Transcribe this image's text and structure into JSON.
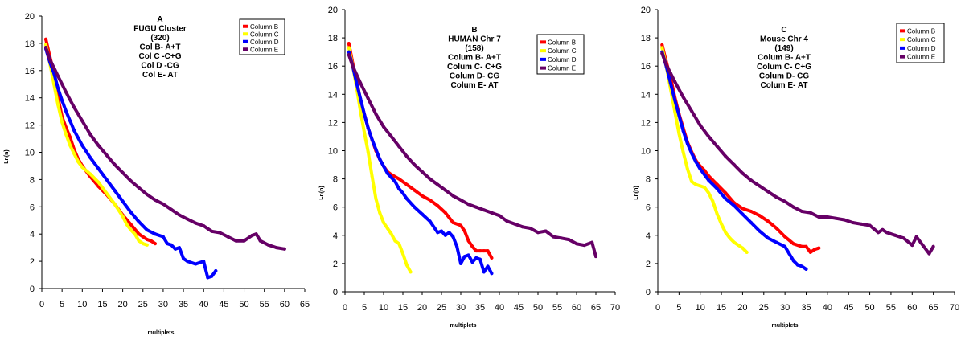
{
  "chart_data": [
    {
      "type": "line",
      "title_lines": [
        "A",
        "FUGU Cluster",
        "(320)",
        "Col B- A+T",
        "Col C -C+G",
        "Col D -CG",
        "Col E- AT"
      ],
      "xlabel": "multiplets",
      "ylabel": "Ln(n)",
      "xlim": [
        0,
        65
      ],
      "ylim": [
        0,
        20
      ],
      "xticks": [
        0,
        5,
        10,
        15,
        20,
        25,
        30,
        35,
        40,
        45,
        50,
        55,
        60,
        65
      ],
      "yticks": [
        0,
        2,
        4,
        6,
        8,
        10,
        12,
        14,
        16,
        18,
        20
      ],
      "legend_position": "top-right",
      "series": [
        {
          "name": "Column B",
          "color": "#ff0000",
          "x": [
            1,
            2,
            3,
            4,
            5,
            6,
            7,
            8,
            9,
            10,
            12,
            14,
            16,
            18,
            20,
            22,
            24,
            26,
            27,
            28
          ],
          "values": [
            18.3,
            17.0,
            15.8,
            14.0,
            12.6,
            11.8,
            11.1,
            10.2,
            9.5,
            9.0,
            8.2,
            7.5,
            6.9,
            6.2,
            5.4,
            4.7,
            4.0,
            3.6,
            3.5,
            3.3
          ]
        },
        {
          "name": "Column C",
          "color": "#ffff00",
          "x": [
            1,
            2,
            3,
            4,
            5,
            6,
            7,
            8,
            9,
            10,
            12,
            14,
            16,
            18,
            20,
            21,
            22,
            23,
            24,
            25,
            26
          ],
          "values": [
            17.9,
            16.5,
            15.0,
            13.5,
            12.2,
            11.3,
            10.5,
            9.9,
            9.3,
            8.9,
            8.4,
            7.8,
            7.0,
            6.2,
            5.3,
            4.7,
            4.3,
            4.0,
            3.5,
            3.3,
            3.2
          ]
        },
        {
          "name": "Column D",
          "color": "#0000ff",
          "x": [
            1,
            2,
            3,
            4,
            5,
            6,
            7,
            8,
            10,
            12,
            14,
            16,
            18,
            20,
            22,
            24,
            26,
            28,
            30,
            31,
            32,
            33,
            34,
            35,
            36,
            38,
            40,
            41,
            42,
            43
          ],
          "values": [
            17.6,
            16.6,
            15.8,
            14.7,
            13.8,
            13.0,
            12.3,
            11.6,
            10.5,
            9.6,
            8.8,
            8.0,
            7.2,
            6.4,
            5.6,
            4.9,
            4.3,
            4.0,
            3.8,
            3.3,
            3.2,
            2.9,
            3.0,
            2.2,
            2.0,
            1.8,
            2.0,
            0.8,
            0.9,
            1.3
          ]
        },
        {
          "name": "Column E",
          "color": "#660066",
          "x": [
            1,
            2,
            3,
            4,
            6,
            8,
            10,
            12,
            14,
            16,
            18,
            20,
            22,
            24,
            26,
            28,
            30,
            32,
            34,
            36,
            38,
            40,
            42,
            44,
            46,
            48,
            50,
            52,
            53,
            54,
            56,
            58,
            60
          ],
          "values": [
            17.7,
            16.8,
            16.2,
            15.6,
            14.4,
            13.3,
            12.3,
            11.3,
            10.5,
            9.8,
            9.1,
            8.5,
            7.9,
            7.4,
            6.9,
            6.5,
            6.2,
            5.8,
            5.4,
            5.1,
            4.8,
            4.6,
            4.2,
            4.1,
            3.8,
            3.5,
            3.5,
            3.9,
            4.0,
            3.5,
            3.2,
            3.0,
            2.9
          ]
        }
      ]
    },
    {
      "type": "line",
      "title_lines": [
        "B",
        "HUMAN Chr 7",
        "(158)",
        "Colum B- A+T",
        "Colum C- C+G",
        "Colum D- CG",
        "Colum E- AT"
      ],
      "xlabel": "multiplets",
      "ylabel": "Ln(n)",
      "xlim": [
        0,
        70
      ],
      "ylim": [
        0,
        20
      ],
      "xticks": [
        0,
        5,
        10,
        15,
        20,
        25,
        30,
        35,
        40,
        45,
        50,
        55,
        60,
        65,
        70
      ],
      "yticks": [
        0,
        2,
        4,
        6,
        8,
        10,
        12,
        14,
        16,
        18,
        20
      ],
      "legend_position": "top-right",
      "series": [
        {
          "name": "Column B",
          "color": "#ff0000",
          "x": [
            1,
            2,
            3,
            4,
            5,
            6,
            7,
            8,
            9,
            10,
            11,
            12,
            14,
            16,
            18,
            20,
            22,
            24,
            26,
            28,
            30,
            31,
            32,
            33,
            34,
            35,
            36,
            37,
            38
          ],
          "values": [
            17.6,
            16.2,
            15.0,
            13.6,
            12.6,
            11.6,
            10.8,
            10.0,
            9.4,
            8.9,
            8.5,
            8.3,
            8.0,
            7.6,
            7.2,
            6.8,
            6.5,
            6.1,
            5.6,
            4.9,
            4.7,
            4.3,
            3.6,
            3.2,
            2.9,
            2.9,
            2.9,
            2.9,
            2.4
          ]
        },
        {
          "name": "Column C",
          "color": "#ffff00",
          "x": [
            1,
            2,
            3,
            4,
            5,
            6,
            7,
            8,
            9,
            10,
            11,
            12,
            13,
            14,
            15,
            16,
            17
          ],
          "values": [
            17.3,
            16.0,
            14.5,
            12.8,
            11.3,
            9.9,
            8.2,
            6.6,
            5.6,
            4.9,
            4.5,
            4.1,
            3.6,
            3.4,
            2.7,
            1.9,
            1.4
          ]
        },
        {
          "name": "Column D",
          "color": "#0000ff",
          "x": [
            1,
            2,
            3,
            4,
            5,
            6,
            7,
            8,
            9,
            10,
            11,
            12,
            13,
            14,
            15,
            16,
            18,
            20,
            22,
            24,
            25,
            26,
            27,
            28,
            29,
            30,
            31,
            32,
            33,
            34,
            35,
            36,
            37,
            38
          ],
          "values": [
            17.0,
            16.0,
            14.8,
            13.7,
            12.6,
            11.6,
            10.8,
            10.1,
            9.4,
            8.9,
            8.4,
            8.1,
            7.8,
            7.3,
            7.0,
            6.6,
            6.0,
            5.5,
            5.0,
            4.2,
            4.3,
            4.0,
            4.2,
            3.9,
            3.2,
            2.0,
            2.5,
            2.6,
            2.1,
            2.4,
            2.3,
            1.4,
            1.8,
            1.3
          ]
        },
        {
          "name": "Column E",
          "color": "#660066",
          "x": [
            1,
            2,
            3,
            4,
            6,
            8,
            10,
            12,
            14,
            16,
            18,
            20,
            22,
            24,
            26,
            28,
            30,
            32,
            34,
            36,
            38,
            40,
            42,
            44,
            46,
            48,
            50,
            52,
            54,
            56,
            58,
            60,
            62,
            64,
            65
          ],
          "values": [
            16.8,
            16.0,
            15.4,
            14.8,
            13.7,
            12.6,
            11.7,
            11.0,
            10.3,
            9.6,
            9.0,
            8.5,
            8.0,
            7.6,
            7.2,
            6.8,
            6.5,
            6.2,
            6.0,
            5.8,
            5.6,
            5.4,
            5.0,
            4.8,
            4.6,
            4.5,
            4.2,
            4.3,
            3.9,
            3.8,
            3.7,
            3.4,
            3.3,
            3.5,
            2.5
          ]
        }
      ]
    },
    {
      "type": "line",
      "title_lines": [
        "C",
        "Mouse Chr 4",
        "(149)",
        "Colum B- A+T",
        "Colum C- C+G",
        "Colum D- CG",
        "Colum E- AT"
      ],
      "xlabel": "multiplets",
      "ylabel": "Ln(n)",
      "xlim": [
        0,
        70
      ],
      "ylim": [
        0,
        20
      ],
      "xticks": [
        0,
        5,
        10,
        15,
        20,
        25,
        30,
        35,
        40,
        45,
        50,
        55,
        60,
        65,
        70
      ],
      "yticks": [
        0,
        2,
        4,
        6,
        8,
        10,
        12,
        14,
        16,
        18,
        20
      ],
      "legend_position": "top-right",
      "series": [
        {
          "name": "Column B",
          "color": "#ff0000",
          "x": [
            1,
            2,
            3,
            4,
            5,
            6,
            7,
            8,
            9,
            10,
            11,
            12,
            14,
            16,
            18,
            20,
            22,
            24,
            26,
            28,
            30,
            32,
            34,
            35,
            36,
            37,
            38
          ],
          "values": [
            17.5,
            16.3,
            15.2,
            13.8,
            12.6,
            11.6,
            10.6,
            9.9,
            9.3,
            8.9,
            8.6,
            8.2,
            7.6,
            7.0,
            6.3,
            5.9,
            5.7,
            5.4,
            5.0,
            4.5,
            3.9,
            3.4,
            3.2,
            3.2,
            2.8,
            3.0,
            3.1
          ]
        },
        {
          "name": "Column C",
          "color": "#ffff00",
          "x": [
            1,
            2,
            3,
            4,
            5,
            6,
            7,
            8,
            9,
            10,
            11,
            12,
            13,
            14,
            15,
            16,
            17,
            18,
            19,
            20,
            21
          ],
          "values": [
            17.3,
            16.0,
            14.4,
            12.8,
            11.2,
            9.9,
            8.7,
            7.8,
            7.6,
            7.5,
            7.4,
            7.0,
            6.4,
            5.5,
            4.8,
            4.2,
            3.8,
            3.5,
            3.3,
            3.1,
            2.8
          ]
        },
        {
          "name": "Column D",
          "color": "#0000ff",
          "x": [
            1,
            2,
            3,
            4,
            5,
            6,
            7,
            8,
            9,
            10,
            12,
            14,
            16,
            18,
            20,
            22,
            24,
            26,
            28,
            30,
            31,
            32,
            33,
            34,
            35
          ],
          "values": [
            17.0,
            16.0,
            14.8,
            13.6,
            12.5,
            11.4,
            10.5,
            9.8,
            9.2,
            8.7,
            7.9,
            7.3,
            6.6,
            6.1,
            5.5,
            4.9,
            4.3,
            3.8,
            3.5,
            3.2,
            2.7,
            2.2,
            1.9,
            1.8,
            1.6
          ]
        },
        {
          "name": "Column E",
          "color": "#660066",
          "x": [
            1,
            2,
            3,
            4,
            6,
            8,
            10,
            12,
            14,
            16,
            18,
            20,
            22,
            24,
            26,
            28,
            30,
            32,
            34,
            36,
            38,
            40,
            42,
            44,
            46,
            48,
            50,
            52,
            53,
            54,
            56,
            58,
            60,
            61,
            62,
            64,
            65
          ],
          "values": [
            16.9,
            16.1,
            15.5,
            14.9,
            13.8,
            12.8,
            11.8,
            11.0,
            10.3,
            9.6,
            9.0,
            8.4,
            7.9,
            7.5,
            7.1,
            6.7,
            6.4,
            6.0,
            5.7,
            5.6,
            5.3,
            5.3,
            5.2,
            5.1,
            4.9,
            4.8,
            4.7,
            4.2,
            4.4,
            4.2,
            4.0,
            3.8,
            3.3,
            3.9,
            3.5,
            2.7,
            3.2
          ]
        }
      ]
    }
  ],
  "legend_labels": [
    "Column B",
    "Column C",
    "Column D",
    "Column E"
  ],
  "axis_label_x": "multiplets",
  "axis_label_y": "Ln(n)"
}
